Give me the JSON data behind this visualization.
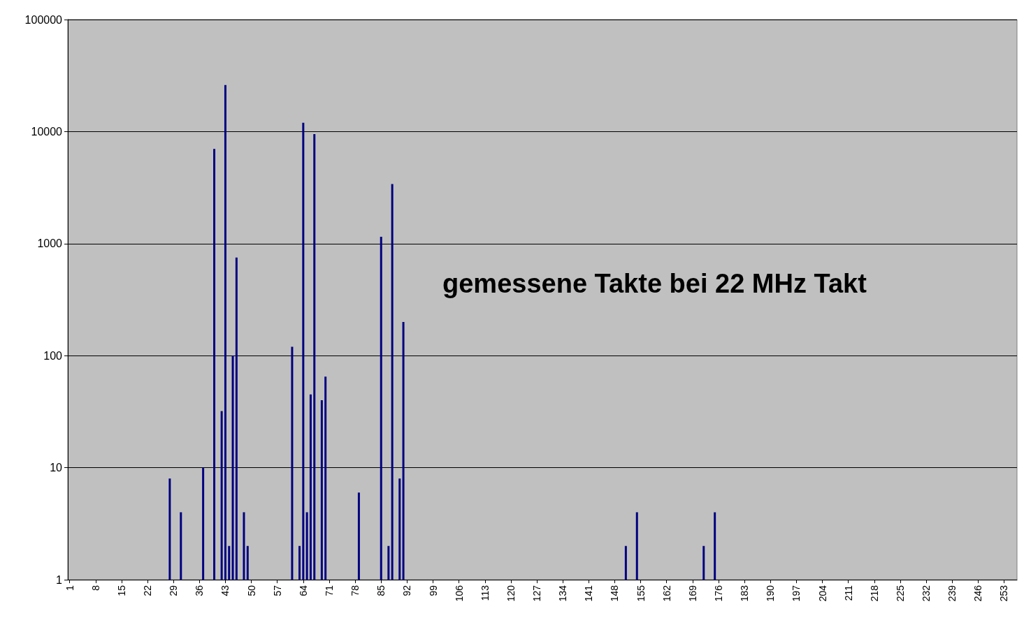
{
  "chart_data": {
    "type": "bar",
    "title": "gemessene Takte bei 22 MHz Takt",
    "x": [
      28,
      31,
      37,
      40,
      42,
      43,
      44,
      45,
      46,
      48,
      49,
      61,
      63,
      64,
      65,
      66,
      67,
      69,
      70,
      79,
      85,
      87,
      88,
      90,
      91,
      151,
      154,
      172,
      175
    ],
    "values": [
      8,
      4,
      10,
      7000,
      32,
      26000,
      2,
      100,
      750,
      4,
      2,
      120,
      2,
      12000,
      4,
      45,
      9500,
      40,
      65,
      6,
      1150,
      2,
      3400,
      8,
      200,
      2,
      4,
      2,
      4
    ],
    "xlim": [
      0.5,
      256.5
    ],
    "xticks": [
      1,
      8,
      15,
      22,
      29,
      36,
      43,
      50,
      57,
      64,
      71,
      78,
      85,
      92,
      99,
      106,
      113,
      120,
      127,
      134,
      141,
      148,
      155,
      162,
      169,
      176,
      183,
      190,
      197,
      204,
      211,
      218,
      225,
      232,
      239,
      246,
      253
    ],
    "color": "#000080",
    "log": "y",
    "ylim": [
      1,
      100000
    ],
    "yticks": [
      1,
      10,
      100,
      1000,
      10000,
      100000
    ],
    "grid": "y"
  }
}
